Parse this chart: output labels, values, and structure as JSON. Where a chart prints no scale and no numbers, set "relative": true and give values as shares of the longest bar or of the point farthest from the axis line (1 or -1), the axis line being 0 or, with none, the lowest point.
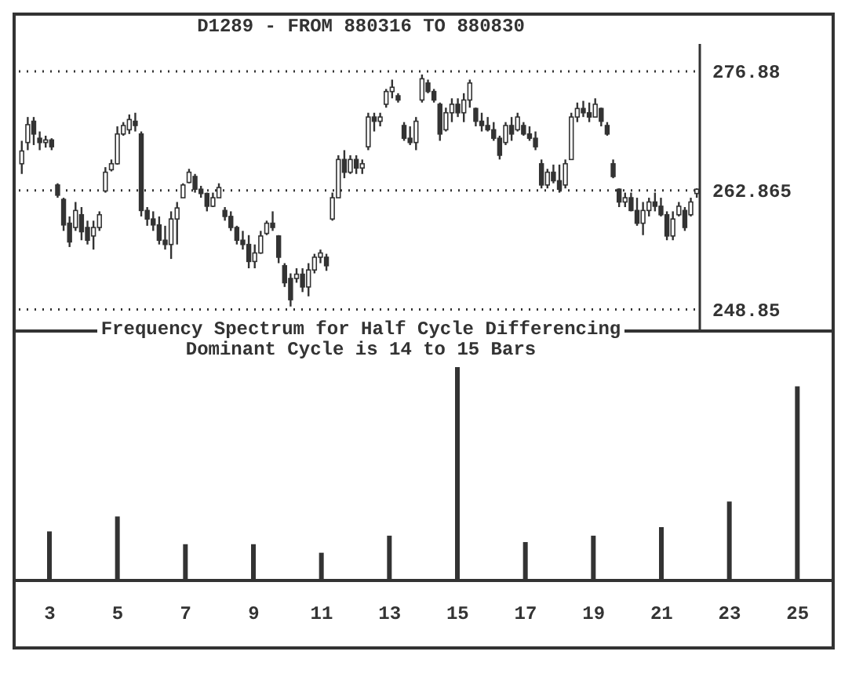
{
  "chart_data": [
    {
      "type": "candlestick",
      "title": "D1289 - FROM 880316 TO 880830",
      "color": "#333333",
      "ylim": [
        246.5,
        280.1
      ],
      "yticks": [
        248.85,
        262.865,
        276.88
      ],
      "grid": "y",
      "tick_labels": "y",
      "categories": [
        null,
        null,
        null,
        null,
        null,
        null,
        null,
        null,
        null,
        null,
        null,
        null,
        null,
        null,
        null,
        null,
        null,
        null,
        null,
        null,
        null,
        null,
        null,
        null,
        null,
        null,
        null,
        null,
        null,
        null,
        null,
        null,
        null,
        null,
        null,
        null,
        null,
        null,
        null,
        null,
        null,
        null,
        null,
        null,
        null,
        null,
        null,
        null,
        null,
        null,
        null,
        null,
        null,
        null,
        null,
        null,
        null,
        null,
        null,
        null,
        null,
        null,
        null,
        null,
        null,
        null,
        null,
        null,
        null,
        null,
        null,
        null,
        null,
        null,
        null,
        null,
        null,
        null,
        null,
        null,
        null,
        null,
        null,
        null,
        null,
        null,
        null,
        null,
        null,
        null,
        null,
        null,
        null,
        null,
        null,
        null,
        null,
        null,
        null,
        null,
        null,
        null,
        null,
        null,
        null,
        null,
        null,
        null,
        null,
        null,
        null,
        null,
        null,
        null
      ],
      "ohlc": [
        [
          266.0,
          268.7,
          264.8,
          267.5
        ],
        [
          268.5,
          271.5,
          267.6,
          270.6
        ],
        [
          271.0,
          271.5,
          268.2,
          269.5
        ],
        [
          269.0,
          269.8,
          267.6,
          268.5
        ],
        [
          268.5,
          269.3,
          267.9,
          268.8
        ],
        [
          268.8,
          269.0,
          267.6,
          268.0
        ],
        [
          263.5,
          263.7,
          262.0,
          262.3
        ],
        [
          261.8,
          262.0,
          258.1,
          258.8
        ],
        [
          259.0,
          259.8,
          256.2,
          256.8
        ],
        [
          258.5,
          261.5,
          258.1,
          260.5
        ],
        [
          260.0,
          260.9,
          257.0,
          258.0
        ],
        [
          258.5,
          259.3,
          256.5,
          257.0
        ],
        [
          257.5,
          259.3,
          255.9,
          258.5
        ],
        [
          258.5,
          260.4,
          258.1,
          260.0
        ],
        [
          262.8,
          265.6,
          262.6,
          265.0
        ],
        [
          265.3,
          266.5,
          265.1,
          266.0
        ],
        [
          266.0,
          270.4,
          265.9,
          269.5
        ],
        [
          269.5,
          270.9,
          269.3,
          270.5
        ],
        [
          270.0,
          271.8,
          269.5,
          271.2
        ],
        [
          271.0,
          272.0,
          269.8,
          270.5
        ],
        [
          269.5,
          269.8,
          259.8,
          260.5
        ],
        [
          260.5,
          260.9,
          258.7,
          259.5
        ],
        [
          259.5,
          260.4,
          258.1,
          258.8
        ],
        [
          258.8,
          259.8,
          256.5,
          257.0
        ],
        [
          257.0,
          258.7,
          255.9,
          256.5
        ],
        [
          256.5,
          260.4,
          254.8,
          259.5
        ],
        [
          259.5,
          261.5,
          256.5,
          260.8
        ],
        [
          262.0,
          263.7,
          262.0,
          263.5
        ],
        [
          263.8,
          265.4,
          263.7,
          265.0
        ],
        [
          264.5,
          264.8,
          262.6,
          263.0
        ],
        [
          263.0,
          263.4,
          262.0,
          262.5
        ],
        [
          262.5,
          262.6,
          260.4,
          261.0
        ],
        [
          261.0,
          262.6,
          260.9,
          262.0
        ],
        [
          262.0,
          263.7,
          262.0,
          263.2
        ],
        [
          260.5,
          260.9,
          259.3,
          259.8
        ],
        [
          259.8,
          260.4,
          258.1,
          258.5
        ],
        [
          258.5,
          258.7,
          256.5,
          257.0
        ],
        [
          257.0,
          258.1,
          255.9,
          256.5
        ],
        [
          256.5,
          257.6,
          253.7,
          254.5
        ],
        [
          254.5,
          256.5,
          253.7,
          255.5
        ],
        [
          255.5,
          258.1,
          255.4,
          257.5
        ],
        [
          257.8,
          259.3,
          257.6,
          259.0
        ],
        [
          259.0,
          260.4,
          258.1,
          258.5
        ],
        [
          257.5,
          257.6,
          254.3,
          255.0
        ],
        [
          254.0,
          254.3,
          251.5,
          252.0
        ],
        [
          252.5,
          253.1,
          249.2,
          250.0
        ],
        [
          252.5,
          253.7,
          252.0,
          253.0
        ],
        [
          253.0,
          253.7,
          250.9,
          251.5
        ],
        [
          251.5,
          254.3,
          250.4,
          253.5
        ],
        [
          253.5,
          255.4,
          253.1,
          255.0
        ],
        [
          255.0,
          255.9,
          254.3,
          255.5
        ],
        [
          255.0,
          255.4,
          253.4,
          254.0
        ],
        [
          259.5,
          262.6,
          259.3,
          262.0
        ],
        [
          262.0,
          267.0,
          262.0,
          266.5
        ],
        [
          266.5,
          267.6,
          264.3,
          265.0
        ],
        [
          265.0,
          267.0,
          264.8,
          266.5
        ],
        [
          266.5,
          267.0,
          264.8,
          265.5
        ],
        [
          265.5,
          266.5,
          264.8,
          266.0
        ],
        [
          268.0,
          272.0,
          267.6,
          271.5
        ],
        [
          271.5,
          272.0,
          269.8,
          271.0
        ],
        [
          271.0,
          272.0,
          270.4,
          271.5
        ],
        [
          273.0,
          274.8,
          272.6,
          274.5
        ],
        [
          274.5,
          275.9,
          273.7,
          275.0
        ],
        [
          274.0,
          274.3,
          273.2,
          273.5
        ],
        [
          270.5,
          270.9,
          268.7,
          269.0
        ],
        [
          269.0,
          270.4,
          268.2,
          268.5
        ],
        [
          268.5,
          271.5,
          267.6,
          271.0
        ],
        [
          273.5,
          276.5,
          273.2,
          276.0
        ],
        [
          275.5,
          275.9,
          274.3,
          274.5
        ],
        [
          274.5,
          274.8,
          273.2,
          273.5
        ],
        [
          273.0,
          273.2,
          268.7,
          269.5
        ],
        [
          270.0,
          272.6,
          269.8,
          272.0
        ],
        [
          272.0,
          273.7,
          270.9,
          273.0
        ],
        [
          273.0,
          273.7,
          271.5,
          272.0
        ],
        [
          272.0,
          274.3,
          270.9,
          273.5
        ],
        [
          273.5,
          275.9,
          272.6,
          275.5
        ],
        [
          272.5,
          272.6,
          270.4,
          271.0
        ],
        [
          271.0,
          272.0,
          269.8,
          270.5
        ],
        [
          270.5,
          271.5,
          269.8,
          270.0
        ],
        [
          270.0,
          270.9,
          268.7,
          269.0
        ],
        [
          269.0,
          269.3,
          266.5,
          267.0
        ],
        [
          268.5,
          270.9,
          268.2,
          270.5
        ],
        [
          270.5,
          271.5,
          268.7,
          269.5
        ],
        [
          270.0,
          272.0,
          269.8,
          271.5
        ],
        [
          270.5,
          270.9,
          269.3,
          269.5
        ],
        [
          269.5,
          270.4,
          268.7,
          269.0
        ],
        [
          269.0,
          269.8,
          267.6,
          268.0
        ],
        [
          266.0,
          266.5,
          263.1,
          263.5
        ],
        [
          263.5,
          265.4,
          263.1,
          265.0
        ],
        [
          265.0,
          265.9,
          263.7,
          264.0
        ],
        [
          264.0,
          265.9,
          262.6,
          263.0
        ],
        [
          263.5,
          266.5,
          263.1,
          266.0
        ],
        [
          266.5,
          272.0,
          266.5,
          271.5
        ],
        [
          271.5,
          273.2,
          270.9,
          272.5
        ],
        [
          272.5,
          273.4,
          271.5,
          272.0
        ],
        [
          272.0,
          273.2,
          270.9,
          271.5
        ],
        [
          271.5,
          273.7,
          271.5,
          273.0
        ],
        [
          272.5,
          272.6,
          270.4,
          271.0
        ],
        [
          270.5,
          270.9,
          269.3,
          269.5
        ],
        [
          266.0,
          266.5,
          264.3,
          264.5
        ],
        [
          263.0,
          263.1,
          260.9,
          261.5
        ],
        [
          261.5,
          262.6,
          260.9,
          262.0
        ],
        [
          262.0,
          262.6,
          260.4,
          260.5
        ],
        [
          260.5,
          262.0,
          258.7,
          259.0
        ],
        [
          259.0,
          261.5,
          257.6,
          260.5
        ],
        [
          260.5,
          262.0,
          259.8,
          261.5
        ],
        [
          261.5,
          262.6,
          260.4,
          261.0
        ],
        [
          261.0,
          262.0,
          259.8,
          260.0
        ],
        [
          260.0,
          260.4,
          257.0,
          257.5
        ],
        [
          257.5,
          260.4,
          257.0,
          259.5
        ],
        [
          260.0,
          261.5,
          259.8,
          261.0
        ],
        [
          260.5,
          260.9,
          258.1,
          258.5
        ],
        [
          260.0,
          262.0,
          259.8,
          261.5
        ],
        [
          262.5,
          263.1,
          262.0,
          263.0
        ]
      ]
    },
    {
      "type": "bar",
      "title": "Frequency Spectrum for Half Cycle Differencing",
      "subtitle": "Dominant Cycle is 14 to 15 Bars",
      "color": "#333333",
      "relative": true,
      "categories": [
        "3",
        "5",
        "7",
        "9",
        "11",
        "13",
        "15",
        "17",
        "19",
        "21",
        "23",
        "25"
      ],
      "values": [
        0.23,
        0.3,
        0.17,
        0.17,
        0.13,
        0.21,
        1,
        0.18,
        0.21,
        0.25,
        0.37,
        0.91
      ]
    }
  ]
}
